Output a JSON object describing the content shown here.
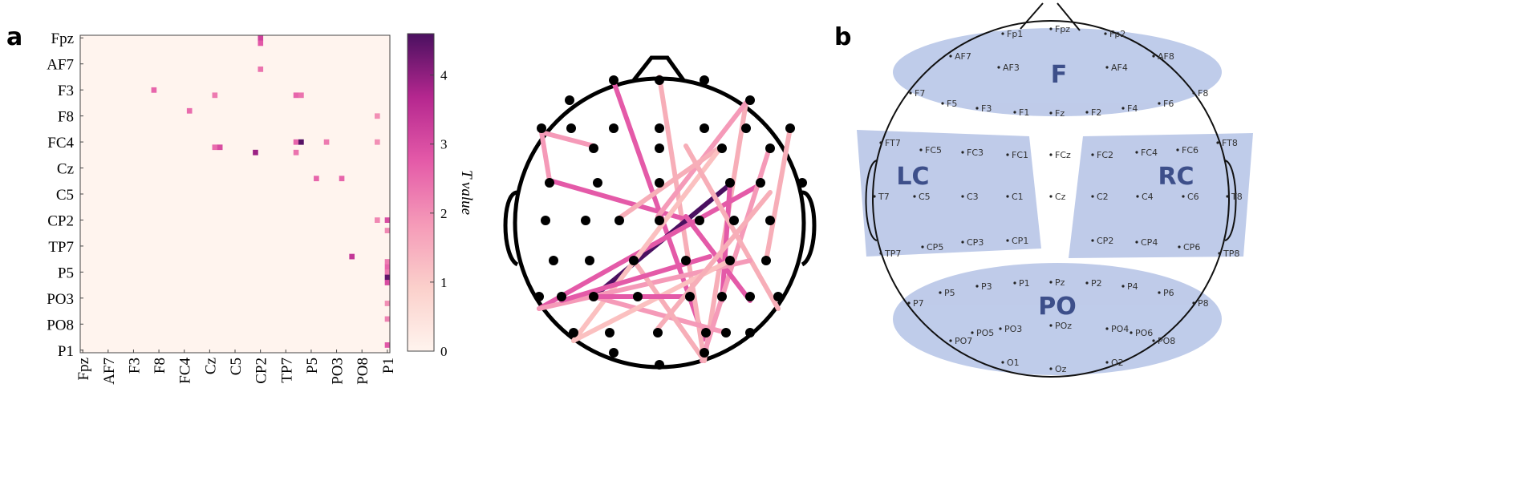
{
  "panel_labels": [
    "a",
    "b"
  ],
  "chart_data": {
    "type": "heatmap",
    "categories": [
      "Fpz",
      null,
      null,
      null,
      null,
      "AF7",
      null,
      null,
      null,
      null,
      "F3",
      null,
      null,
      null,
      null,
      "F8",
      null,
      null,
      null,
      null,
      "FC4",
      null,
      null,
      null,
      null,
      "Cz",
      null,
      null,
      null,
      null,
      "C5",
      null,
      null,
      null,
      null,
      "CP2",
      null,
      null,
      null,
      null,
      "TP7",
      null,
      null,
      null,
      null,
      "P5",
      null,
      null,
      null,
      null,
      "PO3",
      null,
      null,
      null,
      null,
      "PO8",
      null,
      null,
      null,
      null,
      "P1"
    ],
    "cells": [
      [
        0,
        35,
        3.2
      ],
      [
        1,
        35,
        2.8
      ],
      [
        6,
        35,
        2.4
      ],
      [
        10,
        14,
        2.6
      ],
      [
        11,
        26,
        2.3
      ],
      [
        11,
        42,
        2.6
      ],
      [
        11,
        43,
        2.4
      ],
      [
        14,
        21,
        2.5
      ],
      [
        15,
        58,
        2.0
      ],
      [
        21,
        26,
        2.5
      ],
      [
        21,
        27,
        3.0
      ],
      [
        22,
        34,
        3.9
      ],
      [
        20,
        42,
        2.6
      ],
      [
        20,
        43,
        4.5
      ],
      [
        20,
        48,
        2.3
      ],
      [
        20,
        58,
        2.0
      ],
      [
        22,
        42,
        2.4
      ],
      [
        27,
        46,
        2.6
      ],
      [
        27,
        51,
        2.6
      ],
      [
        35,
        58,
        2.1
      ],
      [
        35,
        60,
        3.0
      ],
      [
        37,
        60,
        2.1
      ],
      [
        42,
        53,
        3.4
      ],
      [
        43,
        60,
        2.3
      ],
      [
        44,
        60,
        2.6
      ],
      [
        45,
        60,
        2.3
      ],
      [
        46,
        60,
        4.4
      ],
      [
        47,
        60,
        3.0
      ],
      [
        51,
        60,
        2.0
      ],
      [
        54,
        60,
        2.2
      ],
      [
        59,
        60,
        2.8
      ]
    ],
    "colorbar": {
      "label": "T value",
      "lim": [
        0,
        4.6
      ],
      "ticks": [
        0,
        1,
        2,
        3,
        4
      ],
      "colors": [
        "#fff4ee",
        "#fbd0cb",
        "#f59ab8",
        "#e45aa8",
        "#b5278f",
        "#4a1060"
      ]
    }
  },
  "montage": {
    "regions": [
      "F",
      "LC",
      "RC",
      "PO"
    ],
    "electrodes": [
      "Fp1",
      "Fpz",
      "Fp2",
      "AF7",
      "AF3",
      "AF4",
      "AF8",
      "F7",
      "F5",
      "F3",
      "F1",
      "Fz",
      "F2",
      "F4",
      "F6",
      "F8",
      "FT7",
      "FC5",
      "FC3",
      "FC1",
      "FCz",
      "FC2",
      "FC4",
      "FC6",
      "FT8",
      "T7",
      "C5",
      "C3",
      "C1",
      "Cz",
      "C2",
      "C4",
      "C6",
      "T8",
      "TP7",
      "CP5",
      "CP3",
      "CP1",
      "CP2",
      "CP4",
      "CP6",
      "TP8",
      "P7",
      "P5",
      "P3",
      "P1",
      "Pz",
      "P2",
      "P4",
      "P6",
      "P8",
      "PO7",
      "PO5",
      "PO3",
      "POz",
      "PO4",
      "PO6",
      "PO8",
      "O1",
      "Oz",
      "O2"
    ]
  }
}
